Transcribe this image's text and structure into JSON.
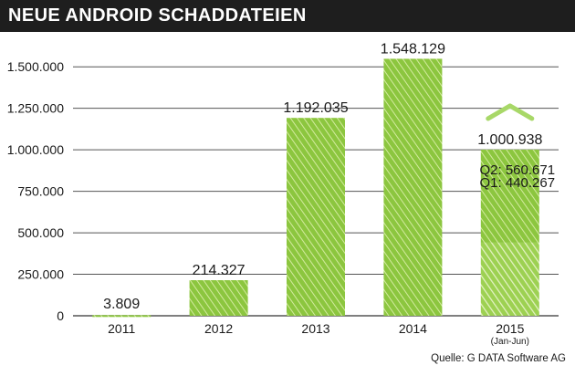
{
  "title": "NEUE ANDROID SCHADDATEIEN",
  "source": "Quelle: G DATA Software AG",
  "colors": {
    "title_bg": "#1e1e1e",
    "bar_fill": "#8cc63f",
    "bar_light": "#d3ea9f",
    "grid": "#555555"
  },
  "chart_data": {
    "type": "bar",
    "title": "NEUE ANDROID SCHADDATEIEN",
    "categories": [
      "2011",
      "2012",
      "2013",
      "2014",
      "2015"
    ],
    "category_sublabels": [
      "",
      "",
      "",
      "",
      "(Jan-Jun)"
    ],
    "values": [
      3809,
      214327,
      1192035,
      1548129,
      1000938
    ],
    "value_labels": [
      "3.809",
      "214.327",
      "1.192.035",
      "1.548.129",
      "1.000.938"
    ],
    "stacked_2015": [
      {
        "name": "Q1",
        "label": "Q1: 440.267",
        "value": 440267
      },
      {
        "name": "Q2",
        "label": "Q2: 560.671",
        "value": 560671
      }
    ],
    "ylim": [
      0,
      1600000
    ],
    "yticks": [
      0,
      250000,
      500000,
      750000,
      1000000,
      1250000,
      1500000
    ],
    "ytick_labels": [
      "0",
      "250.000",
      "500.000",
      "750.000",
      "1.000.000",
      "1.250.000",
      "1.500.000"
    ],
    "grid": true,
    "xlabel": "",
    "ylabel": ""
  }
}
